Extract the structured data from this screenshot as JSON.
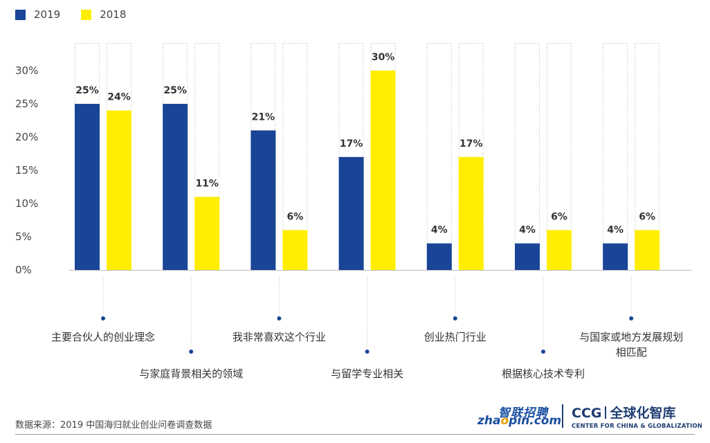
{
  "legend": [
    {
      "label": "2019",
      "color": "#1a4496"
    },
    {
      "label": "2018",
      "color": "#ffee00"
    }
  ],
  "chart_data": {
    "type": "bar",
    "categories": [
      "主要合伙人的创业理念",
      "与家庭背景相关的领域",
      "我非常喜欢这个行业",
      "与留学专业相关",
      "创业热门行业",
      "根据核心技术专利",
      "与国家或地方发展规划相匹配"
    ],
    "series": [
      {
        "name": "2019",
        "values": [
          25,
          25,
          21,
          17,
          4,
          4,
          4
        ],
        "labels": [
          "25%",
          "25%",
          "21%",
          "17%",
          "4%",
          "4%",
          "4%"
        ],
        "color": "#1a4496"
      },
      {
        "name": "2018",
        "values": [
          24,
          11,
          6,
          30,
          17,
          6,
          6
        ],
        "labels": [
          "24%",
          "11%",
          "6%",
          "30%",
          "17%",
          "6%",
          "6%"
        ],
        "color": "#ffee00"
      }
    ],
    "yticks": [
      "0%",
      "5%",
      "10%",
      "15%",
      "20%",
      "25%",
      "30%"
    ],
    "ylim": [
      0,
      30
    ],
    "grid": false,
    "legend_position": "top-left"
  },
  "category_lines": [
    [
      "主要合伙人的创业理念"
    ],
    [
      "与家庭背景相关的领域"
    ],
    [
      "我非常喜欢这个行业"
    ],
    [
      "与留学专业相关"
    ],
    [
      "创业热门行业"
    ],
    [
      "根据核心技术专利"
    ],
    [
      "与国家或地方发展规划",
      "相匹配"
    ]
  ],
  "footer": {
    "source": "数据来源：2019 中国海归就业创业问卷调查数据",
    "zhaopin_cn": "智联招聘",
    "zhaopin_en_a": "zha",
    "zhaopin_en_o": "o",
    "zhaopin_en_b": "pin.com",
    "ccg": "CCG",
    "ccg_cn": "全球化智库",
    "ccg_en": "CENTER FOR CHINA & GLOBALIZATION"
  }
}
